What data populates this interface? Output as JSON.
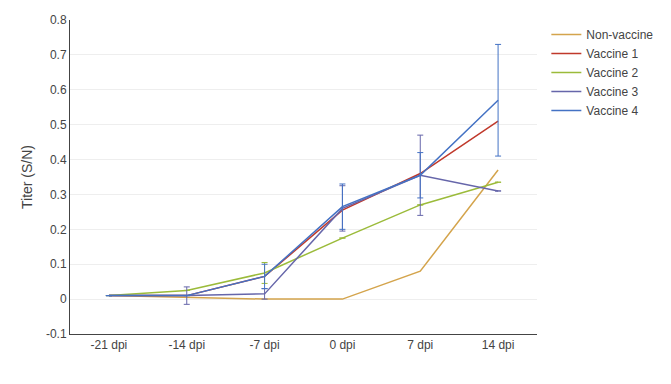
{
  "chart_data": {
    "type": "line",
    "categories": [
      "-21 dpi",
      "-14 dpi",
      "-7 dpi",
      "0 dpi",
      "7 dpi",
      "14 dpi"
    ],
    "series": [
      {
        "name": "Non-vaccine",
        "color": "#D4A44C",
        "values": [
          0.01,
          0.005,
          0.0,
          0.0,
          0.08,
          0.37
        ],
        "errors": [
          null,
          null,
          null,
          null,
          null,
          null
        ]
      },
      {
        "name": "Vaccine 1",
        "color": "#C0392B",
        "values": [
          0.01,
          0.01,
          0.065,
          0.255,
          0.36,
          0.51
        ],
        "errors": [
          null,
          null,
          null,
          null,
          null,
          null
        ]
      },
      {
        "name": "Vaccine 2",
        "color": "#9BBB3A",
        "values": [
          0.01,
          0.025,
          0.075,
          0.175,
          0.27,
          0.335
        ],
        "errors": [
          null,
          null,
          0.03,
          null,
          null,
          null
        ]
      },
      {
        "name": "Vaccine 3",
        "color": "#6666AA",
        "values": [
          0.01,
          0.01,
          0.015,
          0.26,
          0.355,
          0.31
        ],
        "errors": [
          null,
          0.025,
          0.015,
          0.065,
          0.115,
          null
        ]
      },
      {
        "name": "Vaccine 4",
        "color": "#4472C4",
        "values": [
          0.01,
          0.01,
          0.065,
          0.265,
          0.355,
          0.57
        ],
        "errors": [
          null,
          null,
          0.035,
          0.065,
          0.065,
          0.16
        ]
      }
    ],
    "ylabel": "Titer (S/N)",
    "ylim": [
      -0.1,
      0.8
    ],
    "yticks": [
      -0.1,
      0,
      0.1,
      0.2,
      0.3,
      0.4,
      0.5,
      0.6,
      0.7,
      0.8
    ],
    "grid": true,
    "legend": "right"
  }
}
